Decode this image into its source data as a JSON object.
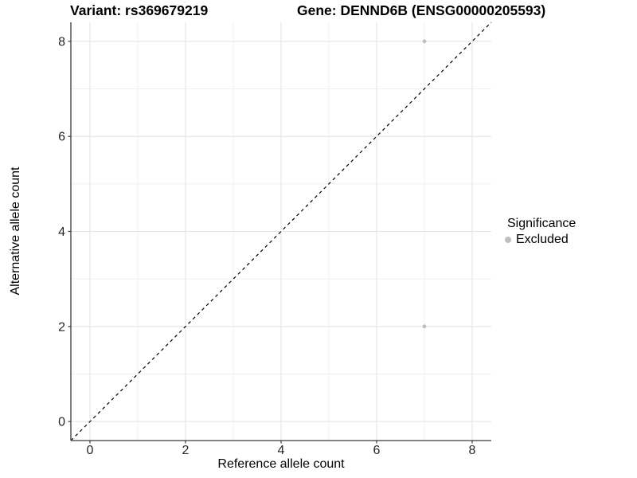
{
  "figure": {
    "title_left": "Variant: rs369679219",
    "title_right": "Gene: DENND6B (ENSG00000205593)"
  },
  "chart_data": {
    "type": "scatter",
    "title": "Variant: rs369679219 / Gene: DENND6B (ENSG00000205593)",
    "xlabel": "Reference allele count",
    "ylabel": "Alternative allele count",
    "xlim": [
      -0.4,
      8.4
    ],
    "ylim": [
      -0.4,
      8.4
    ],
    "xticks": [
      0,
      2,
      4,
      6,
      8
    ],
    "yticks": [
      0,
      2,
      4,
      6,
      8
    ],
    "xminor": [
      1,
      3,
      5,
      7
    ],
    "yminor": [
      1,
      3,
      5,
      7
    ],
    "grid": "on",
    "legend": {
      "title": "Significance",
      "position": "right",
      "entries": [
        {
          "label": "Excluded",
          "color": "#bebebe"
        }
      ]
    },
    "series": [
      {
        "name": "Excluded",
        "color": "#bebebe",
        "points": [
          [
            7,
            8
          ],
          [
            7,
            2
          ]
        ]
      }
    ],
    "reference_line": {
      "type": "identity y=x",
      "linestyle": "dashed",
      "color": "#000000"
    },
    "colors": {
      "grid_major": "#e4e4e4",
      "grid_minor": "#f1f1f1",
      "axis_line": "#3a3a3a",
      "tick_mark": "#3a3a3a",
      "tick_text": "#262626"
    }
  }
}
